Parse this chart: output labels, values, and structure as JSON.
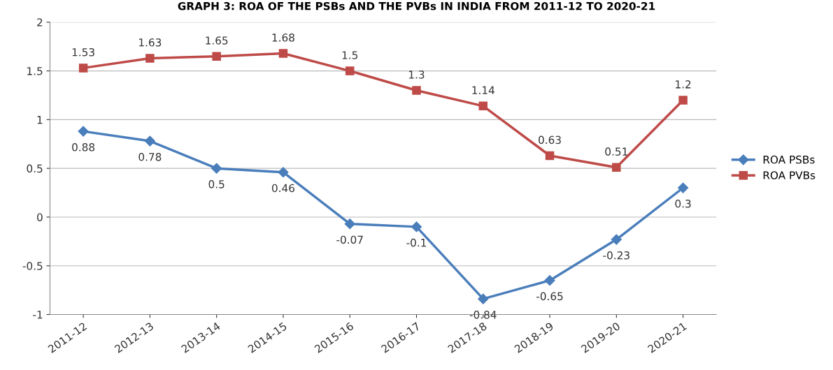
{
  "chart_data": {
    "type": "line",
    "title": "GRAPH 3: ROA OF THE PSBs AND THE PVBs IN INDIA FROM 2011-12 TO 2020-21",
    "categories": [
      "2011-12",
      "2012-13",
      "2013-14",
      "2014-15",
      "2015-16",
      "2016-17",
      "2017-18",
      "2018-19",
      "2019-20",
      "2020-21"
    ],
    "series": [
      {
        "name": "ROA PSBs",
        "color": "#4a7ebb",
        "marker": "diamond",
        "values": [
          0.88,
          0.78,
          0.5,
          0.46,
          -0.07,
          -0.1,
          -0.84,
          -0.65,
          -0.23,
          0.3
        ]
      },
      {
        "name": "ROA PVBs",
        "color": "#be4b48",
        "marker": "square",
        "values": [
          1.53,
          1.63,
          1.65,
          1.68,
          1.5,
          1.3,
          1.14,
          0.63,
          0.51,
          1.2
        ]
      }
    ],
    "ylim": [
      -1,
      2
    ],
    "yticks": [
      -1,
      -0.5,
      0,
      0.5,
      1,
      1.5,
      2
    ],
    "grid": "y",
    "legend": "right",
    "data_labels": true,
    "line_style": "solid"
  }
}
